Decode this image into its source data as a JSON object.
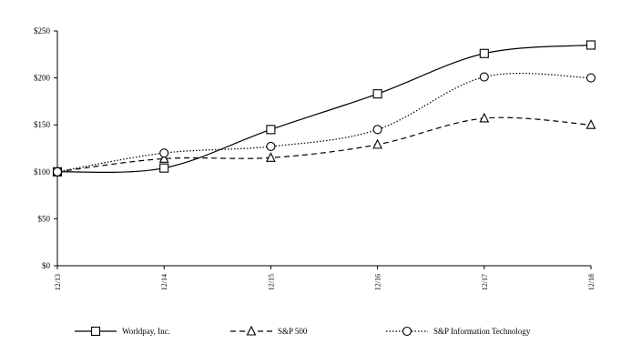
{
  "chart_data": {
    "type": "line",
    "categories": [
      "12/13",
      "12/14",
      "12/15",
      "12/16",
      "12/17",
      "12/18"
    ],
    "y_ticks": [
      "$0",
      "$50",
      "$100",
      "$150",
      "$200",
      "$250"
    ],
    "ylim": [
      0,
      250
    ],
    "grid": false,
    "legend_position": "bottom",
    "series": [
      {
        "name": "Worldpay, Inc.",
        "values": [
          100,
          104,
          145,
          183,
          226,
          235
        ],
        "marker": "square",
        "dash": "solid"
      },
      {
        "name": "S&P 500",
        "values": [
          100,
          114,
          115,
          129,
          157,
          150
        ],
        "marker": "triangle",
        "dash": "dashed"
      },
      {
        "name": "S&P Information Technology",
        "values": [
          100,
          120,
          127,
          145,
          201,
          200
        ],
        "marker": "circle",
        "dash": "dotted"
      }
    ]
  }
}
